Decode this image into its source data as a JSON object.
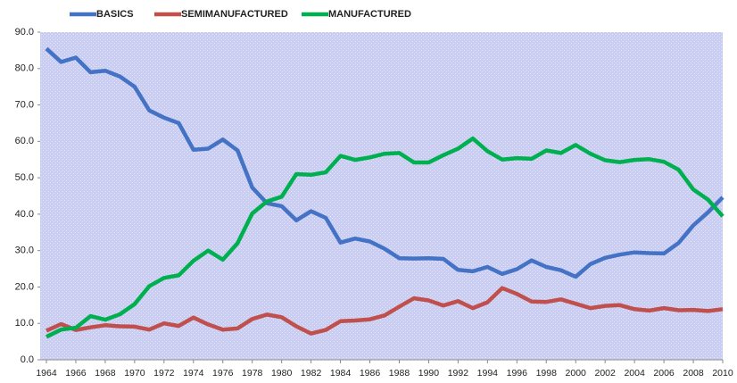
{
  "chart_data": {
    "type": "line",
    "x": [
      1964,
      1965,
      1966,
      1967,
      1968,
      1969,
      1970,
      1971,
      1972,
      1973,
      1974,
      1975,
      1976,
      1977,
      1978,
      1979,
      1980,
      1981,
      1982,
      1983,
      1984,
      1985,
      1986,
      1987,
      1988,
      1989,
      1990,
      1991,
      1992,
      1993,
      1994,
      1995,
      1996,
      1997,
      1998,
      1999,
      2000,
      2001,
      2002,
      2003,
      2004,
      2005,
      2006,
      2007,
      2008,
      2009,
      2010
    ],
    "xlim": [
      1964,
      2010
    ],
    "xticks": [
      1964,
      1966,
      1968,
      1970,
      1972,
      1974,
      1976,
      1978,
      1980,
      1982,
      1984,
      1986,
      1988,
      1990,
      1992,
      1994,
      1996,
      1998,
      2000,
      2002,
      2004,
      2006,
      2008,
      2010
    ],
    "ylim": [
      0,
      90
    ],
    "yticks": [
      {
        "value": 0,
        "label": "0.0"
      },
      {
        "value": 10,
        "label": "10.0"
      },
      {
        "value": 20,
        "label": "20.0"
      },
      {
        "value": 30,
        "label": "30.0"
      },
      {
        "value": 40,
        "label": "40.0"
      },
      {
        "value": 50,
        "label": "50.0"
      },
      {
        "value": 60,
        "label": "60.0"
      },
      {
        "value": 70,
        "label": "70.0"
      },
      {
        "value": 80,
        "label": "80.0"
      },
      {
        "value": 90,
        "label": "90.0"
      }
    ],
    "legend": "top",
    "series": [
      {
        "name": "BASICS",
        "color": "#4472c4",
        "values": [
          85.5,
          81.8,
          83,
          79,
          79.4,
          77.8,
          75,
          68.5,
          66.5,
          65,
          57.7,
          58,
          60.5,
          57.5,
          47.3,
          43,
          42.2,
          38.3,
          40.8,
          39,
          32.2,
          33.3,
          32.5,
          30.5,
          27.9,
          27.8,
          27.9,
          27.7,
          24.7,
          24.3,
          25.5,
          23.6,
          24.9,
          27.3,
          25.5,
          24.6,
          22.8,
          26.3,
          28,
          28.9,
          29.5,
          29.3,
          29.2,
          32.1,
          36.9,
          40.5,
          44.6
        ]
      },
      {
        "name": "SEMIMANUFACTURED",
        "color": "#c0504d",
        "values": [
          8,
          9.8,
          8.2,
          8.9,
          9.5,
          9.2,
          9.1,
          8.3,
          10,
          9.3,
          11.6,
          9.7,
          8.3,
          8.6,
          11.2,
          12.4,
          11.7,
          9.2,
          7.2,
          8.2,
          10.6,
          10.8,
          11.1,
          12.2,
          14.6,
          16.9,
          16.3,
          14.9,
          16.1,
          14.2,
          15.8,
          19.7,
          18.1,
          16,
          15.9,
          16.6,
          15.4,
          14.2,
          14.8,
          15,
          13.9,
          13.5,
          14.2,
          13.6,
          13.7,
          13.4,
          13.9
        ]
      },
      {
        "name": "MANUFACTURED",
        "color": "#00b050",
        "values": [
          6.3,
          8.3,
          8.8,
          12,
          11,
          12.5,
          15.3,
          20.2,
          22.5,
          23.2,
          27.2,
          30,
          27.5,
          32,
          40.2,
          43.5,
          44.8,
          51,
          50.8,
          51.5,
          56,
          54.9,
          55.6,
          56.6,
          56.8,
          54.2,
          54.2,
          56.2,
          58,
          60.8,
          57.3,
          55,
          55.4,
          55.2,
          57.5,
          56.8,
          59,
          56.6,
          54.8,
          54.3,
          54.9,
          55.1,
          54.4,
          52.2,
          46.8,
          44,
          39.4
        ]
      }
    ]
  }
}
